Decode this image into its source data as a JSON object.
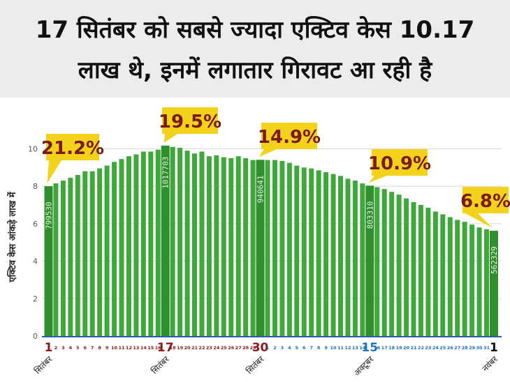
{
  "headline": {
    "line1": "17 सितंबर को सबसे ज्यादा एक्टिव केस 10.17",
    "line2": "लाख थे, इनमें लगातार गिरावट आ रही है"
  },
  "colors": {
    "bar": "#3fa83a",
    "highlight_bar": "#2f8f2c",
    "callout_bg": "#f3d21b",
    "callout_text": "#7a1a1a",
    "axis_line": "#2b5ca8",
    "grid": "#d8d8d8",
    "sep_day": "#8b1a1a",
    "oct_day": "#1f6fc2",
    "nov_day": "#111111"
  },
  "chart_data": {
    "type": "bar",
    "ylabel": "एक्टिव केस आंकड़े लाख में",
    "ylim": [
      0,
      10.5
    ],
    "yticks": [
      0,
      2,
      4,
      6,
      8,
      10
    ],
    "categories": [
      "1",
      "2",
      "3",
      "4",
      "5",
      "6",
      "7",
      "8",
      "9",
      "10",
      "11",
      "12",
      "13",
      "14",
      "15",
      "16",
      "17",
      "18",
      "19",
      "20",
      "21",
      "22",
      "23",
      "24",
      "25",
      "26",
      "27",
      "28",
      "29",
      "30",
      "1",
      "2",
      "3",
      "4",
      "5",
      "6",
      "7",
      "8",
      "9",
      "10",
      "11",
      "12",
      "13",
      "14",
      "15",
      "16",
      "17",
      "18",
      "19",
      "20",
      "21",
      "22",
      "23",
      "24",
      "25",
      "26",
      "27",
      "28",
      "29",
      "30",
      "31",
      "1"
    ],
    "values": [
      8.0,
      8.15,
      8.3,
      8.45,
      8.6,
      8.8,
      8.8,
      8.95,
      9.1,
      9.3,
      9.45,
      9.6,
      9.7,
      9.85,
      9.85,
      9.95,
      10.17,
      10.1,
      10.05,
      9.9,
      9.75,
      9.85,
      9.6,
      9.65,
      9.55,
      9.5,
      9.6,
      9.5,
      9.4,
      9.41,
      9.4,
      9.4,
      9.35,
      9.25,
      9.1,
      9.0,
      8.95,
      8.85,
      8.75,
      8.65,
      8.55,
      8.4,
      8.3,
      8.15,
      8.03,
      7.95,
      7.85,
      7.7,
      7.55,
      7.35,
      7.15,
      7.0,
      6.85,
      6.65,
      6.5,
      6.35,
      6.2,
      6.1,
      5.95,
      5.8,
      5.7,
      5.62
    ],
    "highlights": [
      {
        "index": 0,
        "value_label": "799530",
        "growth": "21.2%",
        "day": "1",
        "month": "सितंबर"
      },
      {
        "index": 16,
        "value_label": "1017703",
        "growth": "19.5%",
        "day": "17",
        "month": "सितंबर"
      },
      {
        "index": 29,
        "value_label": "940641",
        "growth": "14.9%",
        "day": "30",
        "month": "सितंबर"
      },
      {
        "index": 44,
        "value_label": "803310",
        "growth": "10.9%",
        "day": "15",
        "month": "अक्टूबर"
      },
      {
        "index": 61,
        "value_label": "562329",
        "growth": "6.8%",
        "day": "1",
        "month": "नवंबर"
      }
    ]
  }
}
